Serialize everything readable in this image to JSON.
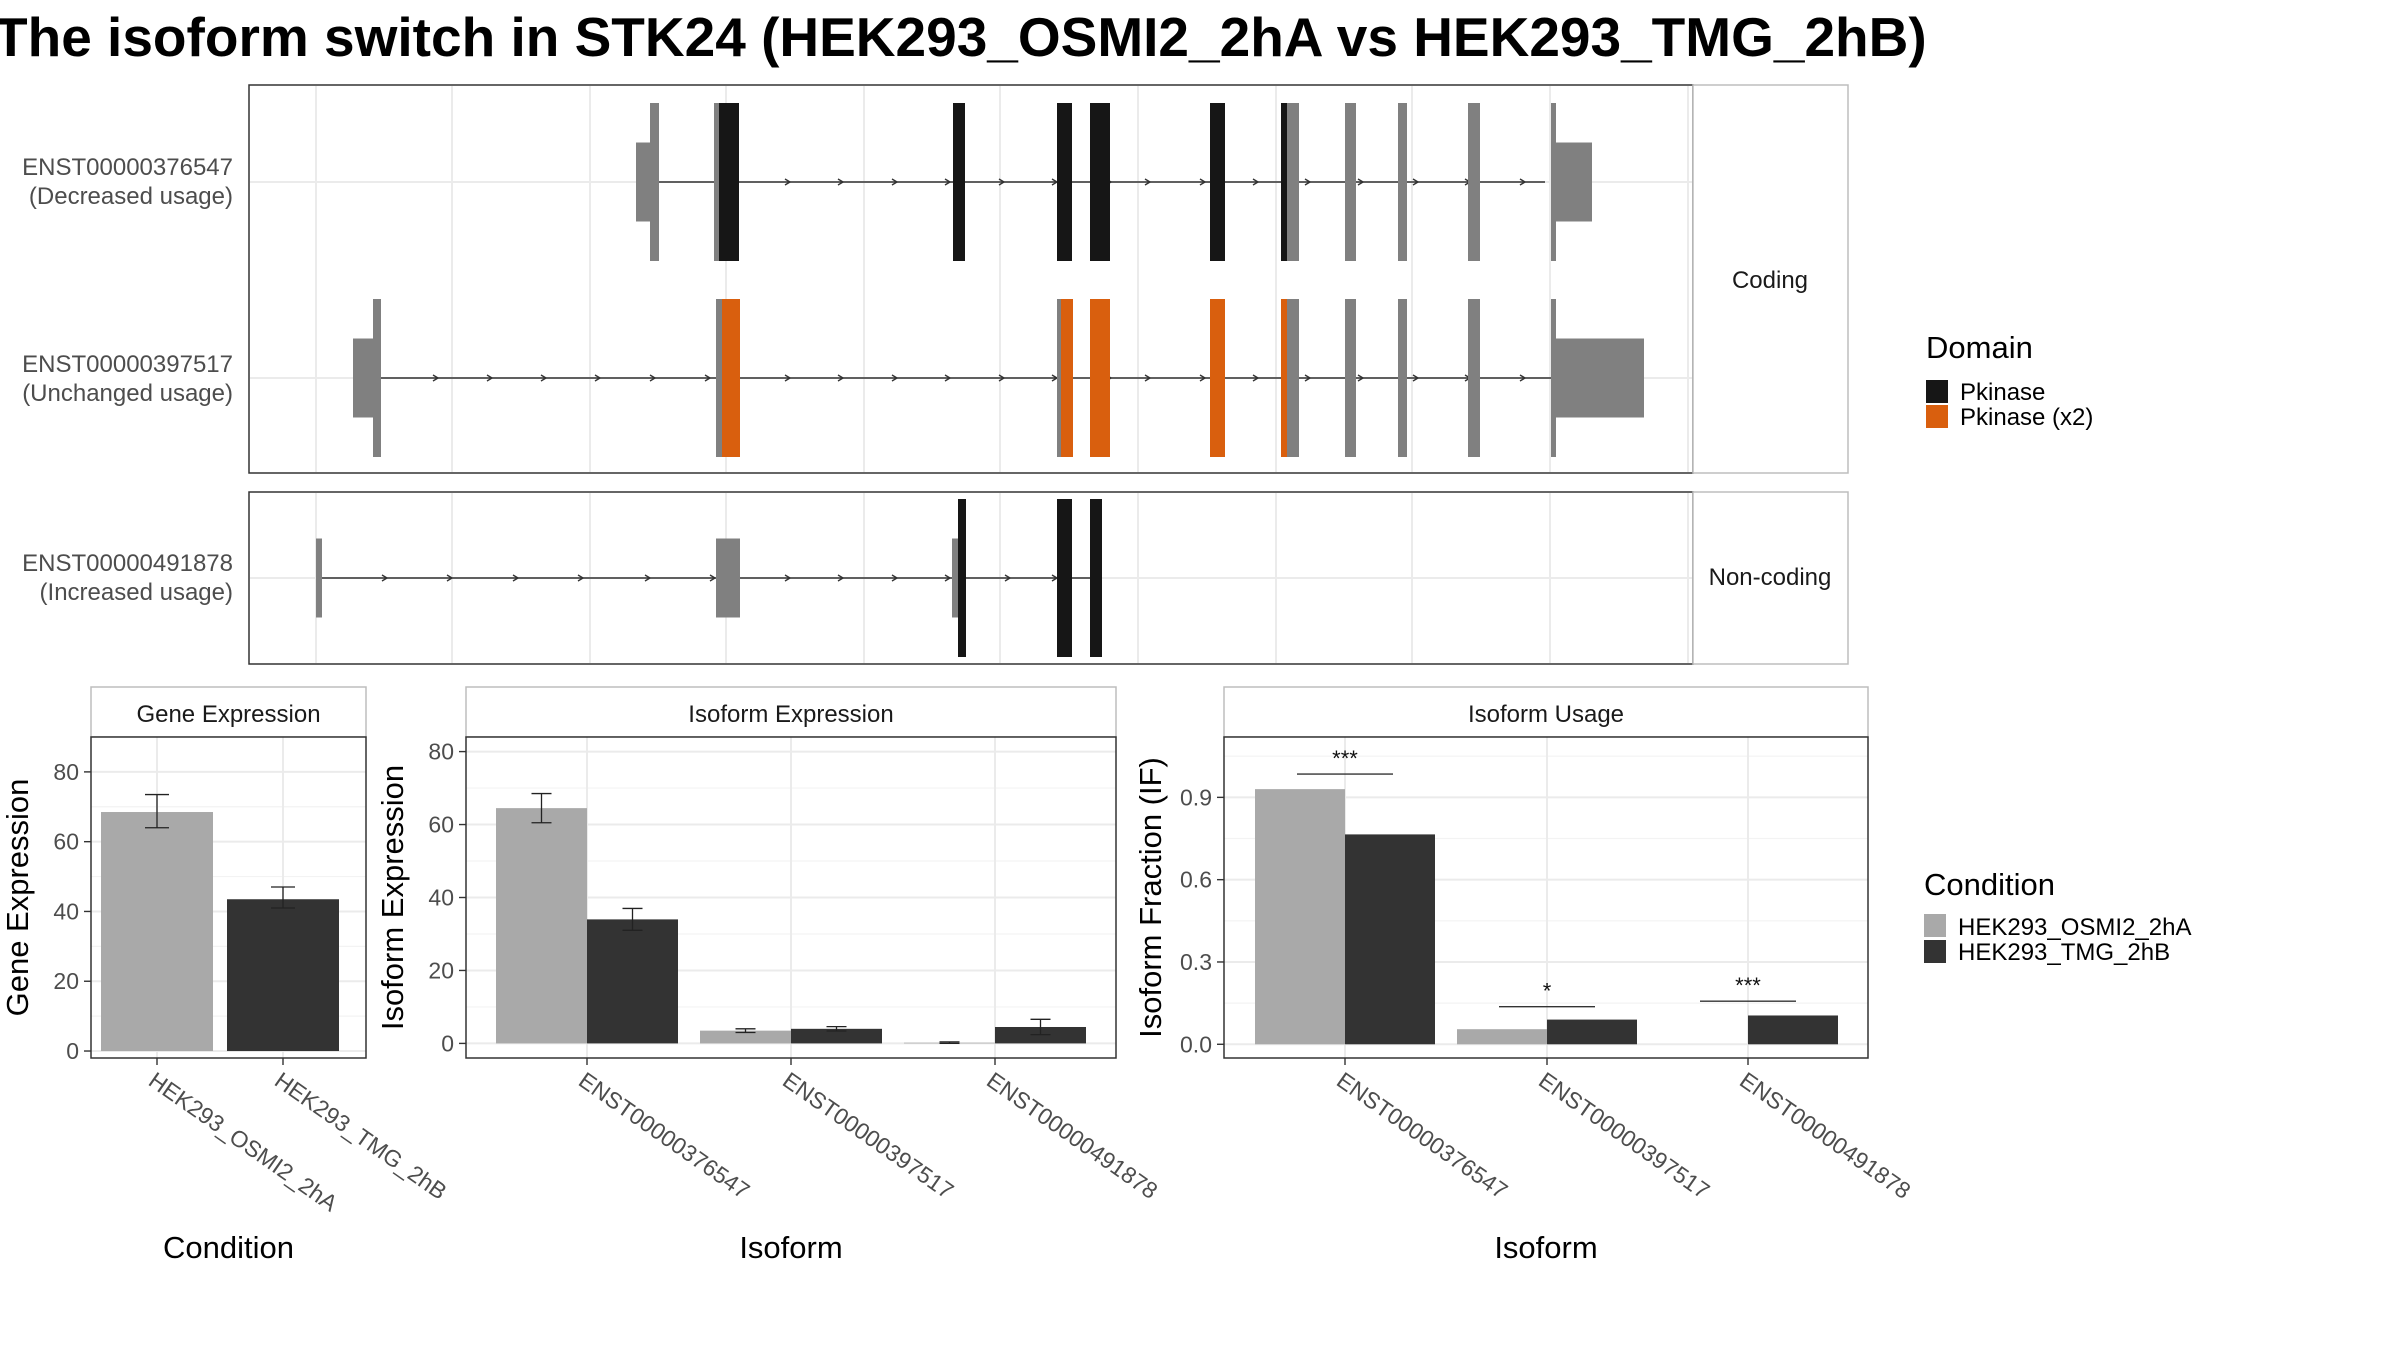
{
  "title": "The isoform switch in STK24 (HEK293_OSMI2_2hA vs HEK293_TMG_2hB)",
  "colors": {
    "domain_pkinase": "#161616",
    "domain_pkinase_x2": "#d95f0e",
    "utr_gray": "#808080",
    "cond_a": "#a9a9a9",
    "cond_b": "#333333",
    "grid": "#ebebeb"
  },
  "transcripts": {
    "coding_strip": "Coding",
    "noncoding_strip": "Non-coding",
    "rows": [
      {
        "id": "ENST00000376547",
        "usage": "(Decreased usage)"
      },
      {
        "id": "ENST00000397517",
        "usage": "(Unchanged usage)"
      },
      {
        "id": "ENST00000491878",
        "usage": "(Increased usage)"
      }
    ]
  },
  "legends": {
    "domain": {
      "title": "Domain",
      "items": [
        "Pkinase",
        "Pkinase (x2)"
      ]
    },
    "condition": {
      "title": "Condition",
      "items": [
        "HEK293_OSMI2_2hA",
        "HEK293_TMG_2hB"
      ]
    }
  },
  "chart_data": [
    {
      "type": "bar",
      "title": "Gene Expression",
      "xlabel": "Condition",
      "ylabel": "Gene Expression",
      "categories": [
        "HEK293_OSMI2_2hA",
        "HEK293_TMG_2hB"
      ],
      "values": [
        68.5,
        43.5
      ],
      "error": [
        [
          64,
          73.5
        ],
        [
          41,
          47
        ]
      ],
      "ylim": [
        -2,
        90
      ],
      "yticks": [
        0,
        20,
        40,
        60,
        80
      ],
      "ytick_labels": [
        "0",
        "20",
        "40",
        "60",
        "80"
      ],
      "grid": true
    },
    {
      "type": "bar",
      "title": "Isoform Expression",
      "xlabel": "Isoform",
      "ylabel": "Isoform Expression",
      "categories": [
        "ENST00000376547",
        "ENST00000397517",
        "ENST00000491878"
      ],
      "series": [
        {
          "name": "HEK293_OSMI2_2hA",
          "values": [
            64.5,
            3.5,
            0.2
          ],
          "error": [
            [
              60.5,
              68.5
            ],
            [
              3,
              4
            ],
            [
              0,
              0.4
            ]
          ]
        },
        {
          "name": "HEK293_TMG_2hB",
          "values": [
            34,
            4,
            4.5
          ],
          "error": [
            [
              31,
              37
            ],
            [
              3.4,
              4.6
            ],
            [
              2.4,
              6.6
            ]
          ]
        }
      ],
      "ylim": [
        -4,
        84
      ],
      "yticks": [
        0,
        20,
        40,
        60,
        80
      ],
      "ytick_labels": [
        "0",
        "20",
        "40",
        "60",
        "80"
      ],
      "grid": true
    },
    {
      "type": "bar",
      "title": "Isoform Usage",
      "xlabel": "Isoform",
      "ylabel": "Isoform Fraction (IF)",
      "categories": [
        "ENST00000376547",
        "ENST00000397517",
        "ENST00000491878"
      ],
      "series": [
        {
          "name": "HEK293_OSMI2_2hA",
          "values": [
            0.93,
            0.055,
            0
          ]
        },
        {
          "name": "HEK293_TMG_2hB",
          "values": [
            0.765,
            0.09,
            0.105
          ]
        }
      ],
      "significance": [
        "***",
        "*",
        "***"
      ],
      "significance_y": [
        0.985,
        0.137,
        0.157
      ],
      "ylim": [
        -0.05,
        1.12
      ],
      "yticks": [
        0,
        0.3,
        0.6,
        0.9
      ],
      "ytick_labels": [
        "0.0",
        "0.3",
        "0.6",
        "0.9"
      ],
      "grid": true
    }
  ]
}
